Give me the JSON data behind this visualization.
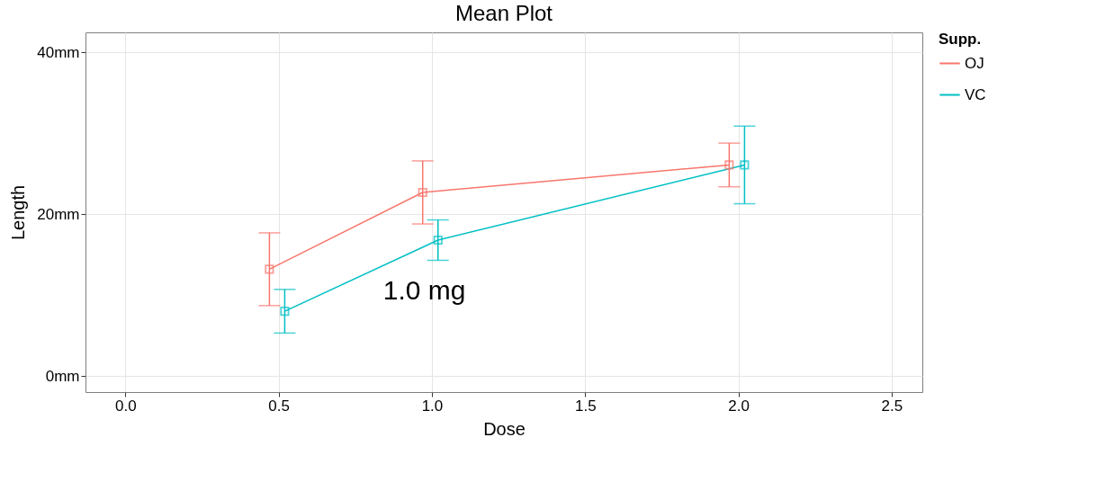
{
  "chart_data": {
    "type": "line",
    "title": "Mean Plot",
    "xlabel": "Dose",
    "ylabel": "Length",
    "legend_title": "Supp.",
    "xlim": [
      -0.13,
      2.6
    ],
    "xticks": [
      {
        "value": 0,
        "label": "0.0"
      },
      {
        "value": 0.5,
        "label": "0.5"
      },
      {
        "value": 1,
        "label": "1.0"
      },
      {
        "value": 1.5,
        "label": "1.5"
      },
      {
        "value": 2,
        "label": "2.0"
      },
      {
        "value": 2.5,
        "label": "2.5"
      }
    ],
    "ylim": [
      -2,
      42.5
    ],
    "yticks": [
      {
        "value": 0,
        "label": "0mm"
      },
      {
        "value": 20,
        "label": "20mm"
      },
      {
        "value": 40,
        "label": "40mm"
      }
    ],
    "grid": true,
    "legend": "right",
    "marker": "square",
    "line_style": "solid",
    "series": [
      {
        "name": "OJ",
        "color": "#f8766d",
        "x": [
          0.47,
          0.97,
          1.97
        ],
        "values": [
          13.2,
          22.7,
          26.1
        ],
        "errors": [
          4.5,
          3.9,
          2.7
        ]
      },
      {
        "name": "VC",
        "color": "#00bfc4",
        "x": [
          0.52,
          1.02,
          2.02
        ],
        "values": [
          8.0,
          16.8,
          26.1
        ],
        "errors": [
          2.7,
          2.5,
          4.8
        ]
      }
    ],
    "annotations": [
      "1.0 mg"
    ]
  }
}
